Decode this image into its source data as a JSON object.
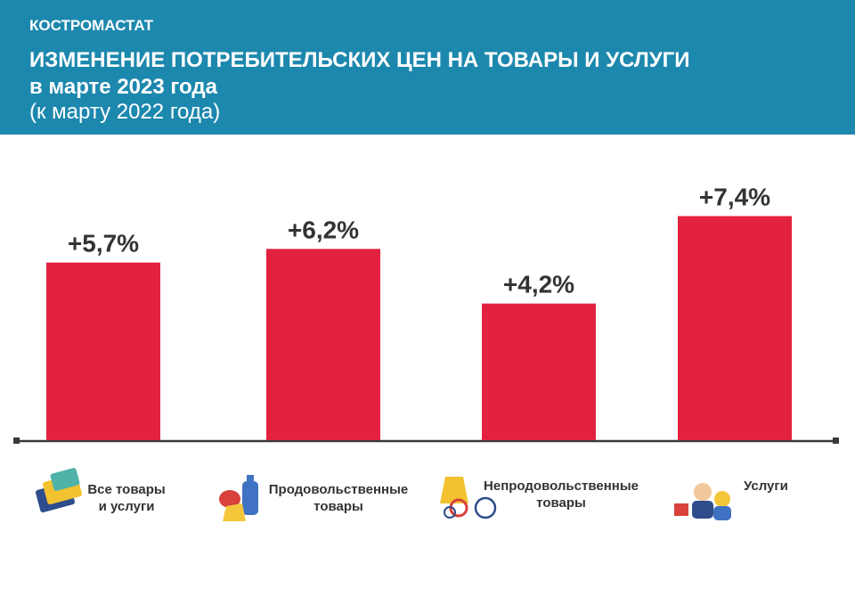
{
  "chart_data": {
    "type": "bar",
    "organization": "КОСТРОМАСТАТ",
    "title": "ИЗМЕНЕНИЕ ПОТРЕБИТЕЛЬСКИХ ЦЕН НА ТОВАРЫ И УСЛУГИ",
    "subtitle": "в марте 2023 года",
    "note": "(к марту 2022 года)",
    "categories": [
      "Все товары и услуги",
      "Продовольственные товары",
      "Непродовольственные товары",
      "Услуги"
    ],
    "values": [
      5.7,
      6.2,
      4.2,
      7.4
    ],
    "value_labels": [
      "+5,7%",
      "+6,2%",
      "+4,2%",
      "+7,4%"
    ],
    "color": "#e3223f",
    "ylim": [
      -0.8,
      8.2
    ],
    "grid": false
  }
}
